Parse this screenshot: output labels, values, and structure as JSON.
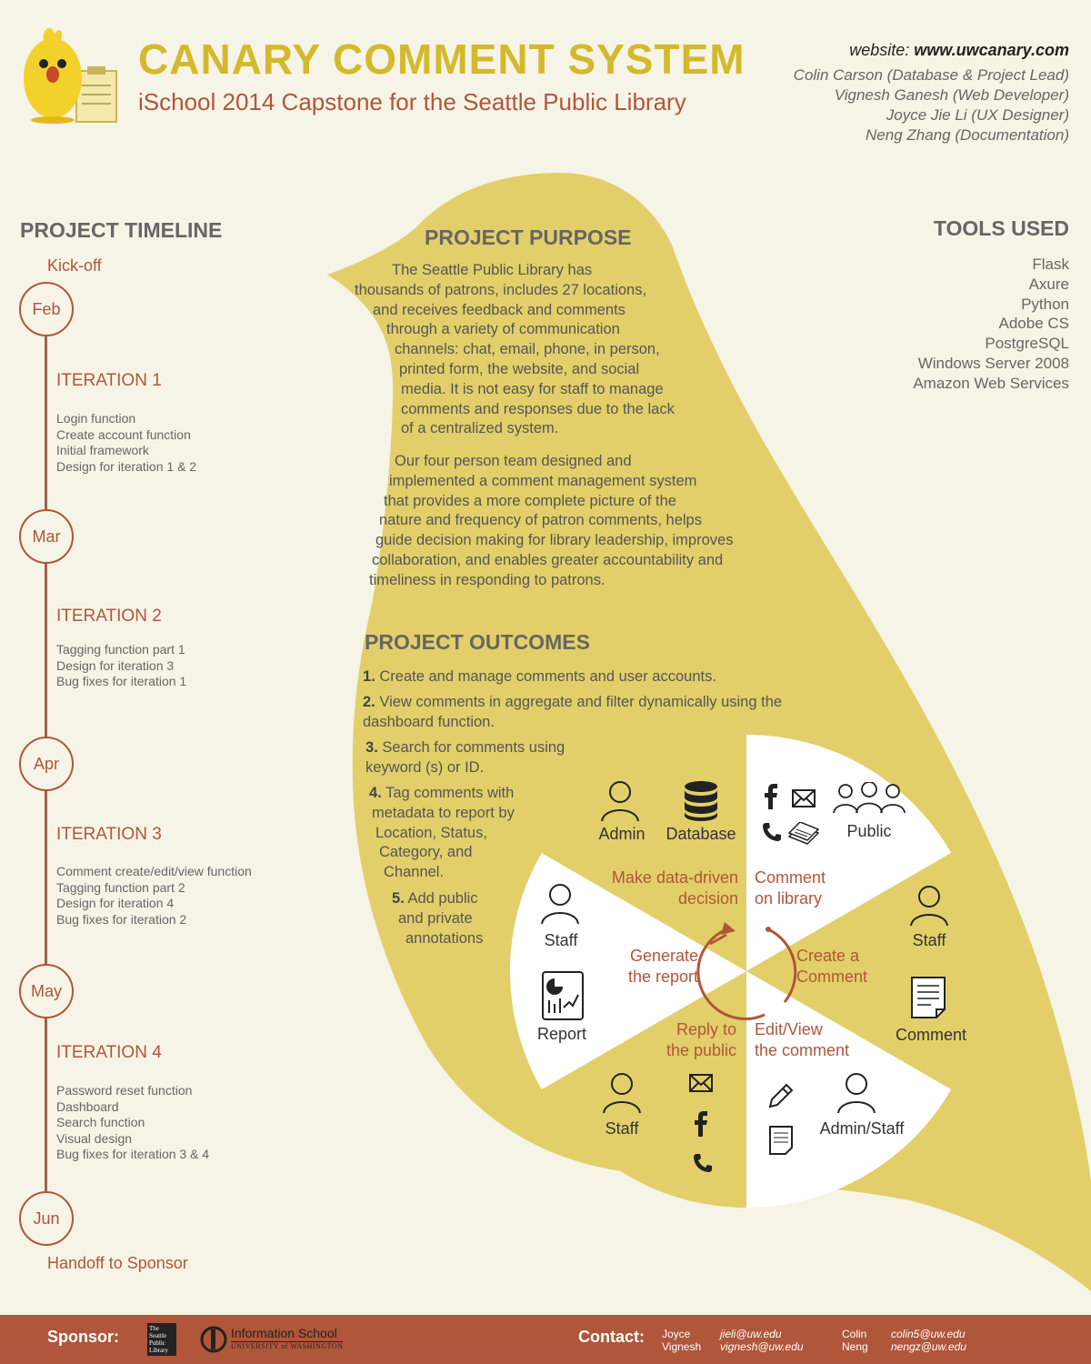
{
  "header": {
    "title": "CANARY COMMENT SYSTEM",
    "subtitle": "iSchool 2014 Capstone for the Seattle Public Library",
    "website_label": "website: ",
    "website_url": "www.uwcanary.com",
    "team": [
      "Colin Carson (Database & Project Lead)",
      "Vignesh Ganesh (Web Developer)",
      "Joyce Jie Li (UX Designer)",
      "Neng Zhang (Documentation)"
    ]
  },
  "timeline": {
    "heading": "PROJECT TIMELINE",
    "kickoff": "Kick-off",
    "handoff": "Handoff to Sponsor",
    "months": [
      "Feb",
      "Mar",
      "Apr",
      "May",
      "Jun"
    ],
    "iterations": [
      {
        "title": "ITERATION 1",
        "items": [
          "Login function",
          "Create account function",
          "Initial framework",
          "Design for iteration 1 & 2"
        ]
      },
      {
        "title": "ITERATION 2",
        "items": [
          "Tagging function part 1",
          "Design for iteration 3",
          "Bug fixes for iteration 1"
        ]
      },
      {
        "title": "ITERATION 3",
        "items": [
          "Comment create/edit/view function",
          "Tagging function part 2",
          "Design for iteration 4",
          "Bug fixes for iteration 2"
        ]
      },
      {
        "title": "ITERATION 4",
        "items": [
          "Password reset function",
          "Dashboard",
          "Search function",
          "Visual design",
          "Bug fixes for iteration 3 & 4"
        ]
      }
    ]
  },
  "tools": {
    "heading": "TOOLS USED",
    "items": [
      "Flask",
      "Axure",
      "Python",
      "Adobe CS",
      "PostgreSQL",
      "Windows Server 2008",
      "Amazon Web Services"
    ]
  },
  "purpose": {
    "heading": "PROJECT PURPOSE",
    "p1_lines": [
      "The Seattle Public Library has",
      "thousands of patrons, includes 27 locations,",
      "and receives feedback and comments",
      "through a variety of communication",
      "channels: chat, email, phone, in person,",
      "printed form, the website, and social",
      "media. It is not easy for staff to manage",
      "comments and responses due to the lack",
      "of a centralized system."
    ],
    "p2_lines": [
      "Our four person team designed and",
      "implemented a comment management system",
      "that provides a more complete picture of the",
      "nature and frequency of patron comments, helps",
      "guide decision making for library leadership, improves",
      "collaboration, and enables greater accountability and",
      "timeliness in responding to patrons."
    ]
  },
  "outcomes": {
    "heading": "PROJECT OUTCOMES",
    "items": [
      {
        "num": "1",
        "lines": [
          "Create and manage comments and user accounts."
        ]
      },
      {
        "num": "2",
        "lines": [
          "View comments in aggregate and filter dynamically using the",
          "dashboard function."
        ]
      },
      {
        "num": "3",
        "lines": [
          "Search for comments using",
          "keyword (s) or ID."
        ]
      },
      {
        "num": "4",
        "lines": [
          "Tag comments with",
          "metadata to report by",
          "Location, Status,",
          "Category, and",
          "Channel."
        ]
      },
      {
        "num": "5",
        "lines": [
          "Add public",
          "and private",
          "annotations"
        ]
      }
    ]
  },
  "wheel": {
    "roles": {
      "admin": "Admin",
      "database": "Database",
      "public": "Public",
      "staff_right": "Staff",
      "comment": "Comment",
      "admin_staff": "Admin/Staff",
      "staff_bottom": "Staff",
      "report": "Report",
      "staff_left": "Staff"
    },
    "steps": {
      "decision": [
        "Make data-driven",
        "decision"
      ],
      "comment_library": [
        "Comment",
        "on library"
      ],
      "create": [
        "Create a",
        "Comment"
      ],
      "edit_view": [
        "Edit/View",
        "the comment"
      ],
      "reply": [
        "Reply to",
        "the public"
      ],
      "generate": [
        "Generate",
        "the report"
      ]
    }
  },
  "footer": {
    "sponsor_label": "Sponsor:",
    "library_logo_text": "The Seattle Public Library",
    "ischool_name": "Information School",
    "ischool_univ": "UNIVERSITY of WASHINGTON",
    "contact_label": "Contact:",
    "contacts": [
      {
        "name": "Joyce",
        "email": "jieli@uw.edu"
      },
      {
        "name": "Vignesh",
        "email": "vignesh@uw.edu"
      },
      {
        "name": "Colin",
        "email": "colin5@uw.edu"
      },
      {
        "name": "Neng",
        "email": "nengz@uw.edu"
      }
    ]
  },
  "colors": {
    "background": "#f6f4e6",
    "canary": "#e2cf69",
    "title": "#d3b92c",
    "accent": "#b0563a"
  }
}
